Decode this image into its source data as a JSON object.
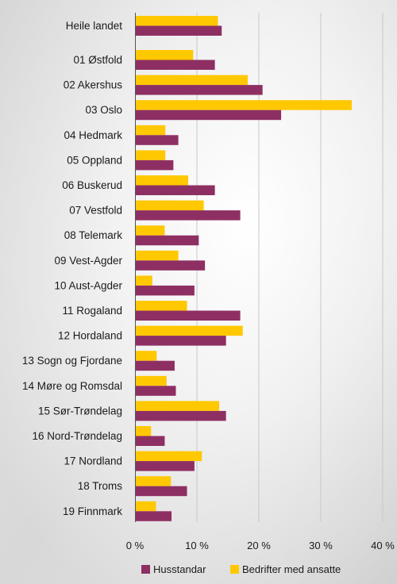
{
  "chart_data": {
    "type": "bar",
    "orientation": "horizontal",
    "categories": [
      "Heile landet",
      "01 Østfold",
      "02 Akershus",
      "03 Oslo",
      "04 Hedmark",
      "05 Oppland",
      "06 Buskerud",
      "07 Vestfold",
      "08 Telemark",
      "09 Vest-Agder",
      "10 Aust-Agder",
      "11 Rogaland",
      "12 Hordaland",
      "13 Sogn og Fjordane",
      "14 Møre og Romsdal",
      "15 Sør-Trøndelag",
      "16 Nord-Trøndelag",
      "17 Nordland",
      "18 Troms",
      "19 Finnmark"
    ],
    "series": [
      {
        "name": "Bedrifter med ansatte",
        "color": "#ffc800",
        "values": [
          13.4,
          9.4,
          18.2,
          35.0,
          4.9,
          4.9,
          8.6,
          11.1,
          4.8,
          7.0,
          2.8,
          8.4,
          17.4,
          3.5,
          5.1,
          13.6,
          2.6,
          10.8,
          5.8,
          3.4
        ]
      },
      {
        "name": "Husstandar",
        "color": "#8e2f63",
        "values": [
          14.0,
          12.9,
          20.6,
          23.6,
          7.0,
          6.2,
          12.9,
          17.0,
          10.3,
          11.3,
          9.6,
          17.0,
          14.7,
          6.4,
          6.6,
          14.7,
          4.8,
          9.6,
          8.4,
          5.9
        ]
      }
    ],
    "xlim": [
      0,
      40
    ],
    "xticks": [
      "0 %",
      "10 %",
      "20 %",
      "30 %",
      "40 %"
    ],
    "grid": true,
    "legend_position": "bottom"
  },
  "legend": {
    "items": [
      {
        "label": "Husstandar",
        "color": "#8e2f63"
      },
      {
        "label": "Bedrifter med ansatte",
        "color": "#ffc800"
      }
    ]
  }
}
